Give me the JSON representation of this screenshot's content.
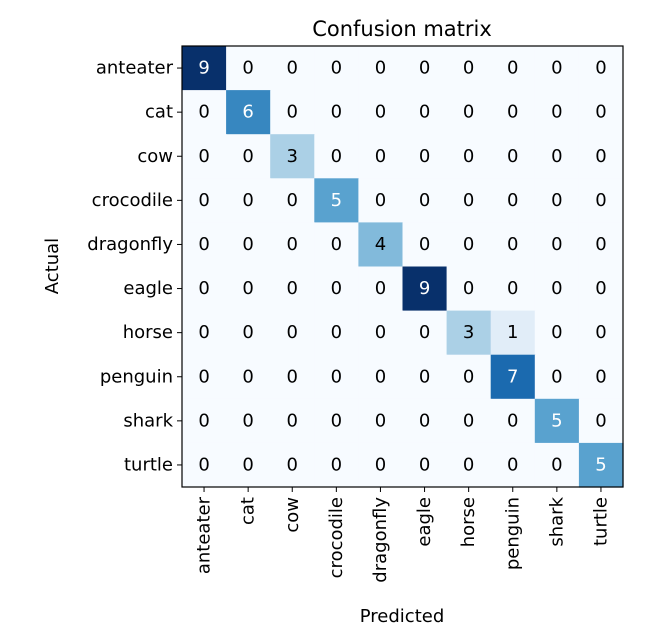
{
  "chart_data": {
    "type": "heatmap",
    "title": "Confusion matrix",
    "xlabel": "Predicted",
    "ylabel": "Actual",
    "x_categories": [
      "anteater",
      "cat",
      "cow",
      "crocodile",
      "dragonfly",
      "eagle",
      "horse",
      "penguin",
      "shark",
      "turtle"
    ],
    "y_categories": [
      "anteater",
      "cat",
      "cow",
      "crocodile",
      "dragonfly",
      "eagle",
      "horse",
      "penguin",
      "shark",
      "turtle"
    ],
    "matrix": [
      [
        9,
        0,
        0,
        0,
        0,
        0,
        0,
        0,
        0,
        0
      ],
      [
        0,
        6,
        0,
        0,
        0,
        0,
        0,
        0,
        0,
        0
      ],
      [
        0,
        0,
        3,
        0,
        0,
        0,
        0,
        0,
        0,
        0
      ],
      [
        0,
        0,
        0,
        5,
        0,
        0,
        0,
        0,
        0,
        0
      ],
      [
        0,
        0,
        0,
        0,
        4,
        0,
        0,
        0,
        0,
        0
      ],
      [
        0,
        0,
        0,
        0,
        0,
        9,
        0,
        0,
        0,
        0
      ],
      [
        0,
        0,
        0,
        0,
        0,
        0,
        3,
        1,
        0,
        0
      ],
      [
        0,
        0,
        0,
        0,
        0,
        0,
        0,
        7,
        0,
        0
      ],
      [
        0,
        0,
        0,
        0,
        0,
        0,
        0,
        0,
        5,
        0
      ],
      [
        0,
        0,
        0,
        0,
        0,
        0,
        0,
        0,
        0,
        5
      ]
    ],
    "value_range": [
      0,
      9
    ],
    "colormap": "Blues",
    "colors": {
      "low": "#f7fbff",
      "high": "#08306b",
      "text_dark": "#000000",
      "text_light": "#ffffff"
    },
    "grid": false
  }
}
